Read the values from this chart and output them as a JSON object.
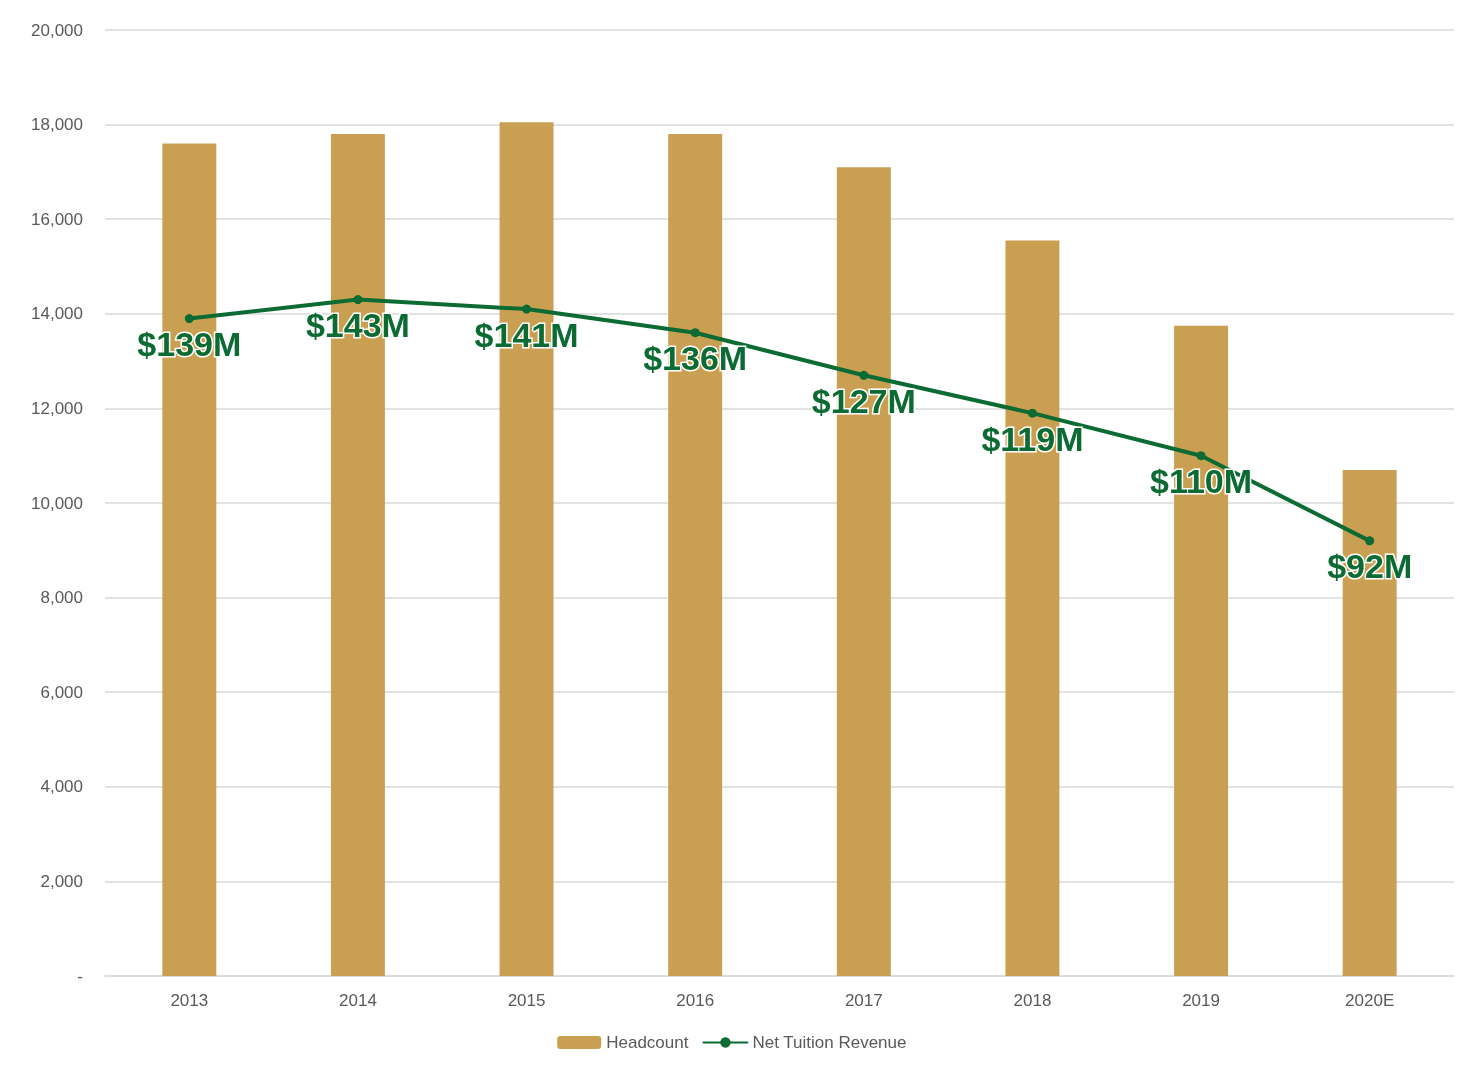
{
  "chart_data": {
    "type": "bar",
    "categories": [
      "2013",
      "2014",
      "2015",
      "2016",
      "2017",
      "2018",
      "2019",
      "2020E"
    ],
    "series": [
      {
        "name": "Headcount",
        "color": "#c9a052",
        "values": [
          17600,
          17800,
          18050,
          17800,
          17100,
          15550,
          13750,
          10700
        ]
      },
      {
        "name": "Net Tuition Revenue",
        "type": "line",
        "axis": "y2",
        "color": "#0b6b32",
        "values": [
          139,
          143,
          141,
          136,
          127,
          119,
          110,
          92
        ],
        "value_labels": [
          "$139M",
          "$143M",
          "$141M",
          "$136M",
          "$127M",
          "$119M",
          "$110M",
          "$92M"
        ]
      }
    ],
    "ylim": [
      0,
      20000
    ],
    "yticks": [
      {
        "value": 0,
        "label": "-"
      },
      {
        "value": 2000,
        "label": "2,000"
      },
      {
        "value": 4000,
        "label": "4,000"
      },
      {
        "value": 6000,
        "label": "6,000"
      },
      {
        "value": 8000,
        "label": "8,000"
      },
      {
        "value": 10000,
        "label": "10,000"
      },
      {
        "value": 12000,
        "label": "12,000"
      },
      {
        "value": 14000,
        "label": "14,000"
      },
      {
        "value": 16000,
        "label": "16,000"
      },
      {
        "value": 18000,
        "label": "18,000"
      },
      {
        "value": 20000,
        "label": "20,000"
      }
    ],
    "y2lim": [
      0,
      200
    ],
    "grid": "y",
    "legend": "bottom",
    "marker": "circle",
    "line_style": "solid"
  }
}
